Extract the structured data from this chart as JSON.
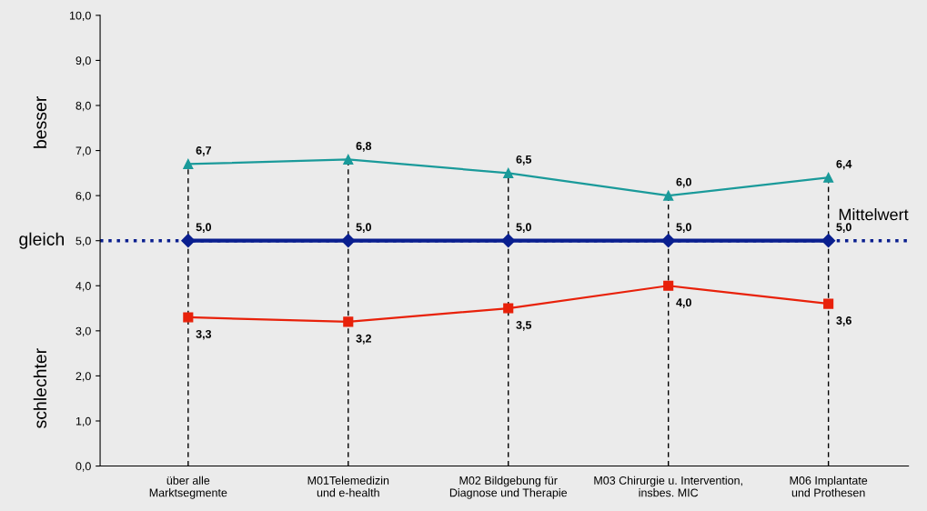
{
  "chart_data": {
    "type": "line",
    "categories": [
      "über alle\nMarktsegmente",
      "M01Telemedizin\nund e-health",
      "M02 Bildgebung für\nDiagnose und Therapie",
      "M03 Chirurgie u. Intervention,\ninsbes. MIC",
      "M06 Implantate\nund Prothesen"
    ],
    "series": [
      {
        "color": "#1a9a9a",
        "marker": "triangle",
        "values": [
          6.7,
          6.8,
          6.5,
          6.0,
          6.4
        ],
        "value_labels": [
          "6,7",
          "6,8",
          "6,5",
          "6,0",
          "6,4"
        ]
      },
      {
        "color": "#0a1f8f",
        "marker": "diamond",
        "values": [
          5.0,
          5.0,
          5.0,
          5.0,
          5.0
        ],
        "value_labels": [
          "5,0",
          "5,0",
          "5,0",
          "5,0",
          "5,0"
        ]
      },
      {
        "color": "#e8210a",
        "marker": "square",
        "values": [
          3.3,
          3.2,
          3.5,
          4.0,
          3.6
        ],
        "value_labels": [
          "3,3",
          "3,2",
          "3,5",
          "4,0",
          "3,6"
        ]
      }
    ],
    "ylim": [
      0,
      10
    ],
    "yticks": [
      {
        "value": 0,
        "label": "0,0"
      },
      {
        "value": 1,
        "label": "1,0"
      },
      {
        "value": 2,
        "label": "2,0"
      },
      {
        "value": 3,
        "label": "3,0"
      },
      {
        "value": 4,
        "label": "4,0"
      },
      {
        "value": 5,
        "label": "5,0"
      },
      {
        "value": 6,
        "label": "6,0"
      },
      {
        "value": 7,
        "label": "7,0"
      },
      {
        "value": 8,
        "label": "8,0"
      },
      {
        "value": 9,
        "label": "9,0"
      },
      {
        "value": 10,
        "label": "10,0"
      }
    ],
    "ref_lines": [
      {
        "axis": "y",
        "value": 5.0,
        "label": "Mittelwert",
        "color": "#0a1f8f",
        "line_style": "dotted"
      }
    ],
    "annotations": [
      "besser",
      "gleich",
      "schlechter"
    ],
    "grid": false
  }
}
